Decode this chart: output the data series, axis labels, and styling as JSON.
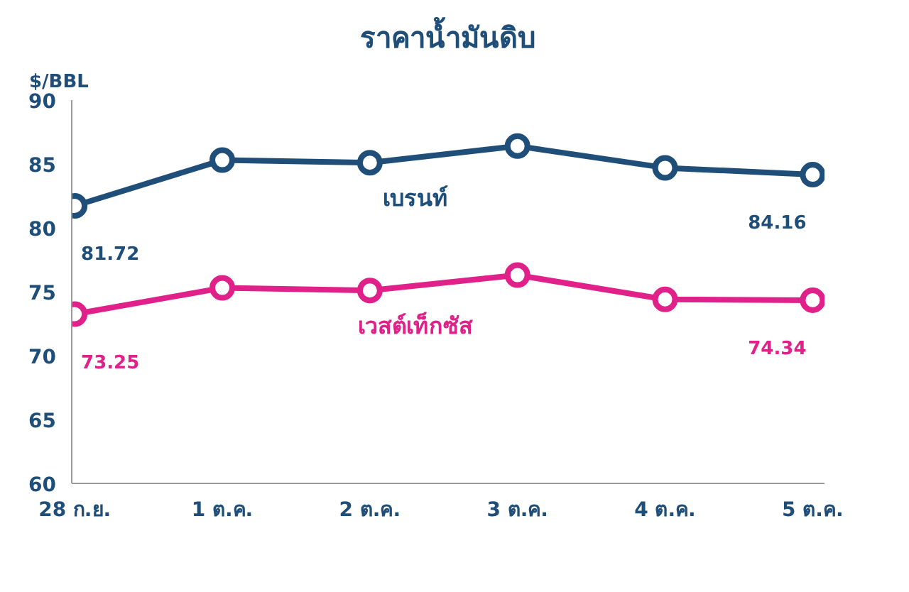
{
  "chart_data": {
    "type": "line",
    "title": "ราคาน้ำมันดิบ",
    "ylabel": "$/BBL",
    "categories": [
      "28 ก.ย.",
      "1 ต.ค.",
      "2 ต.ค.",
      "3 ต.ค.",
      "4 ต.ค.",
      "5 ต.ค."
    ],
    "series": [
      {
        "name": "เบรนท์",
        "color": "#1f4e79",
        "values": [
          81.72,
          85.3,
          85.1,
          86.4,
          84.7,
          84.16
        ],
        "value_labels": [
          "81.72",
          null,
          null,
          null,
          null,
          "84.16"
        ]
      },
      {
        "name": "เวสต์เท็กซัส",
        "color": "#e0218a",
        "values": [
          73.25,
          75.3,
          75.1,
          76.3,
          74.4,
          74.34
        ],
        "value_labels": [
          "73.25",
          null,
          null,
          null,
          null,
          "74.34"
        ]
      }
    ],
    "ylim": [
      60,
      90
    ],
    "yticks": [
      60,
      65,
      70,
      75,
      80,
      85,
      90
    ],
    "grid": false,
    "legend": false,
    "marker": "circle",
    "line_style": "solid"
  }
}
